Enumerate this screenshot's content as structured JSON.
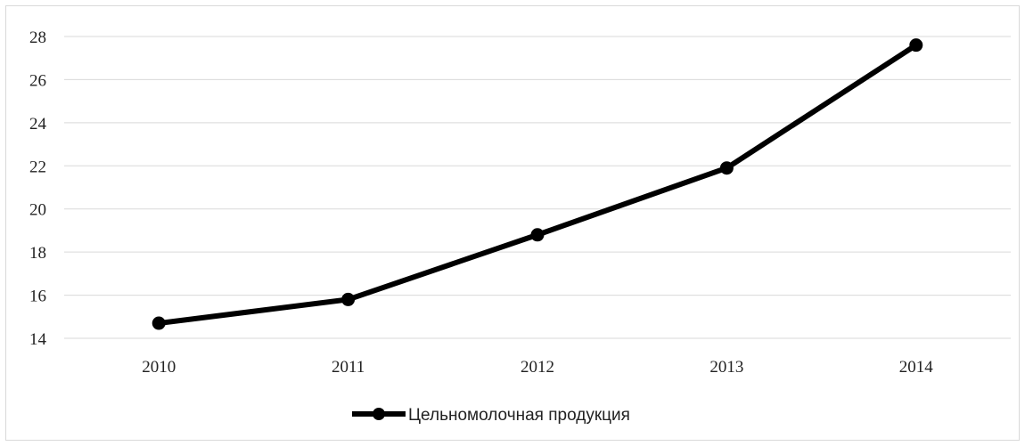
{
  "chart_data": {
    "type": "line",
    "categories": [
      "2010",
      "2011",
      "2012",
      "2013",
      "2014"
    ],
    "series": [
      {
        "name": "Цельномолочная продукция",
        "values": [
          14.7,
          15.8,
          18.8,
          21.9,
          27.6
        ],
        "color": "#000000"
      }
    ],
    "yticks": [
      "14",
      "16",
      "18",
      "20",
      "22",
      "24",
      "26",
      "28"
    ],
    "ylim": [
      14,
      28
    ],
    "grid": true,
    "legend_position": "bottom",
    "title": "",
    "xlabel": "",
    "ylabel": ""
  }
}
